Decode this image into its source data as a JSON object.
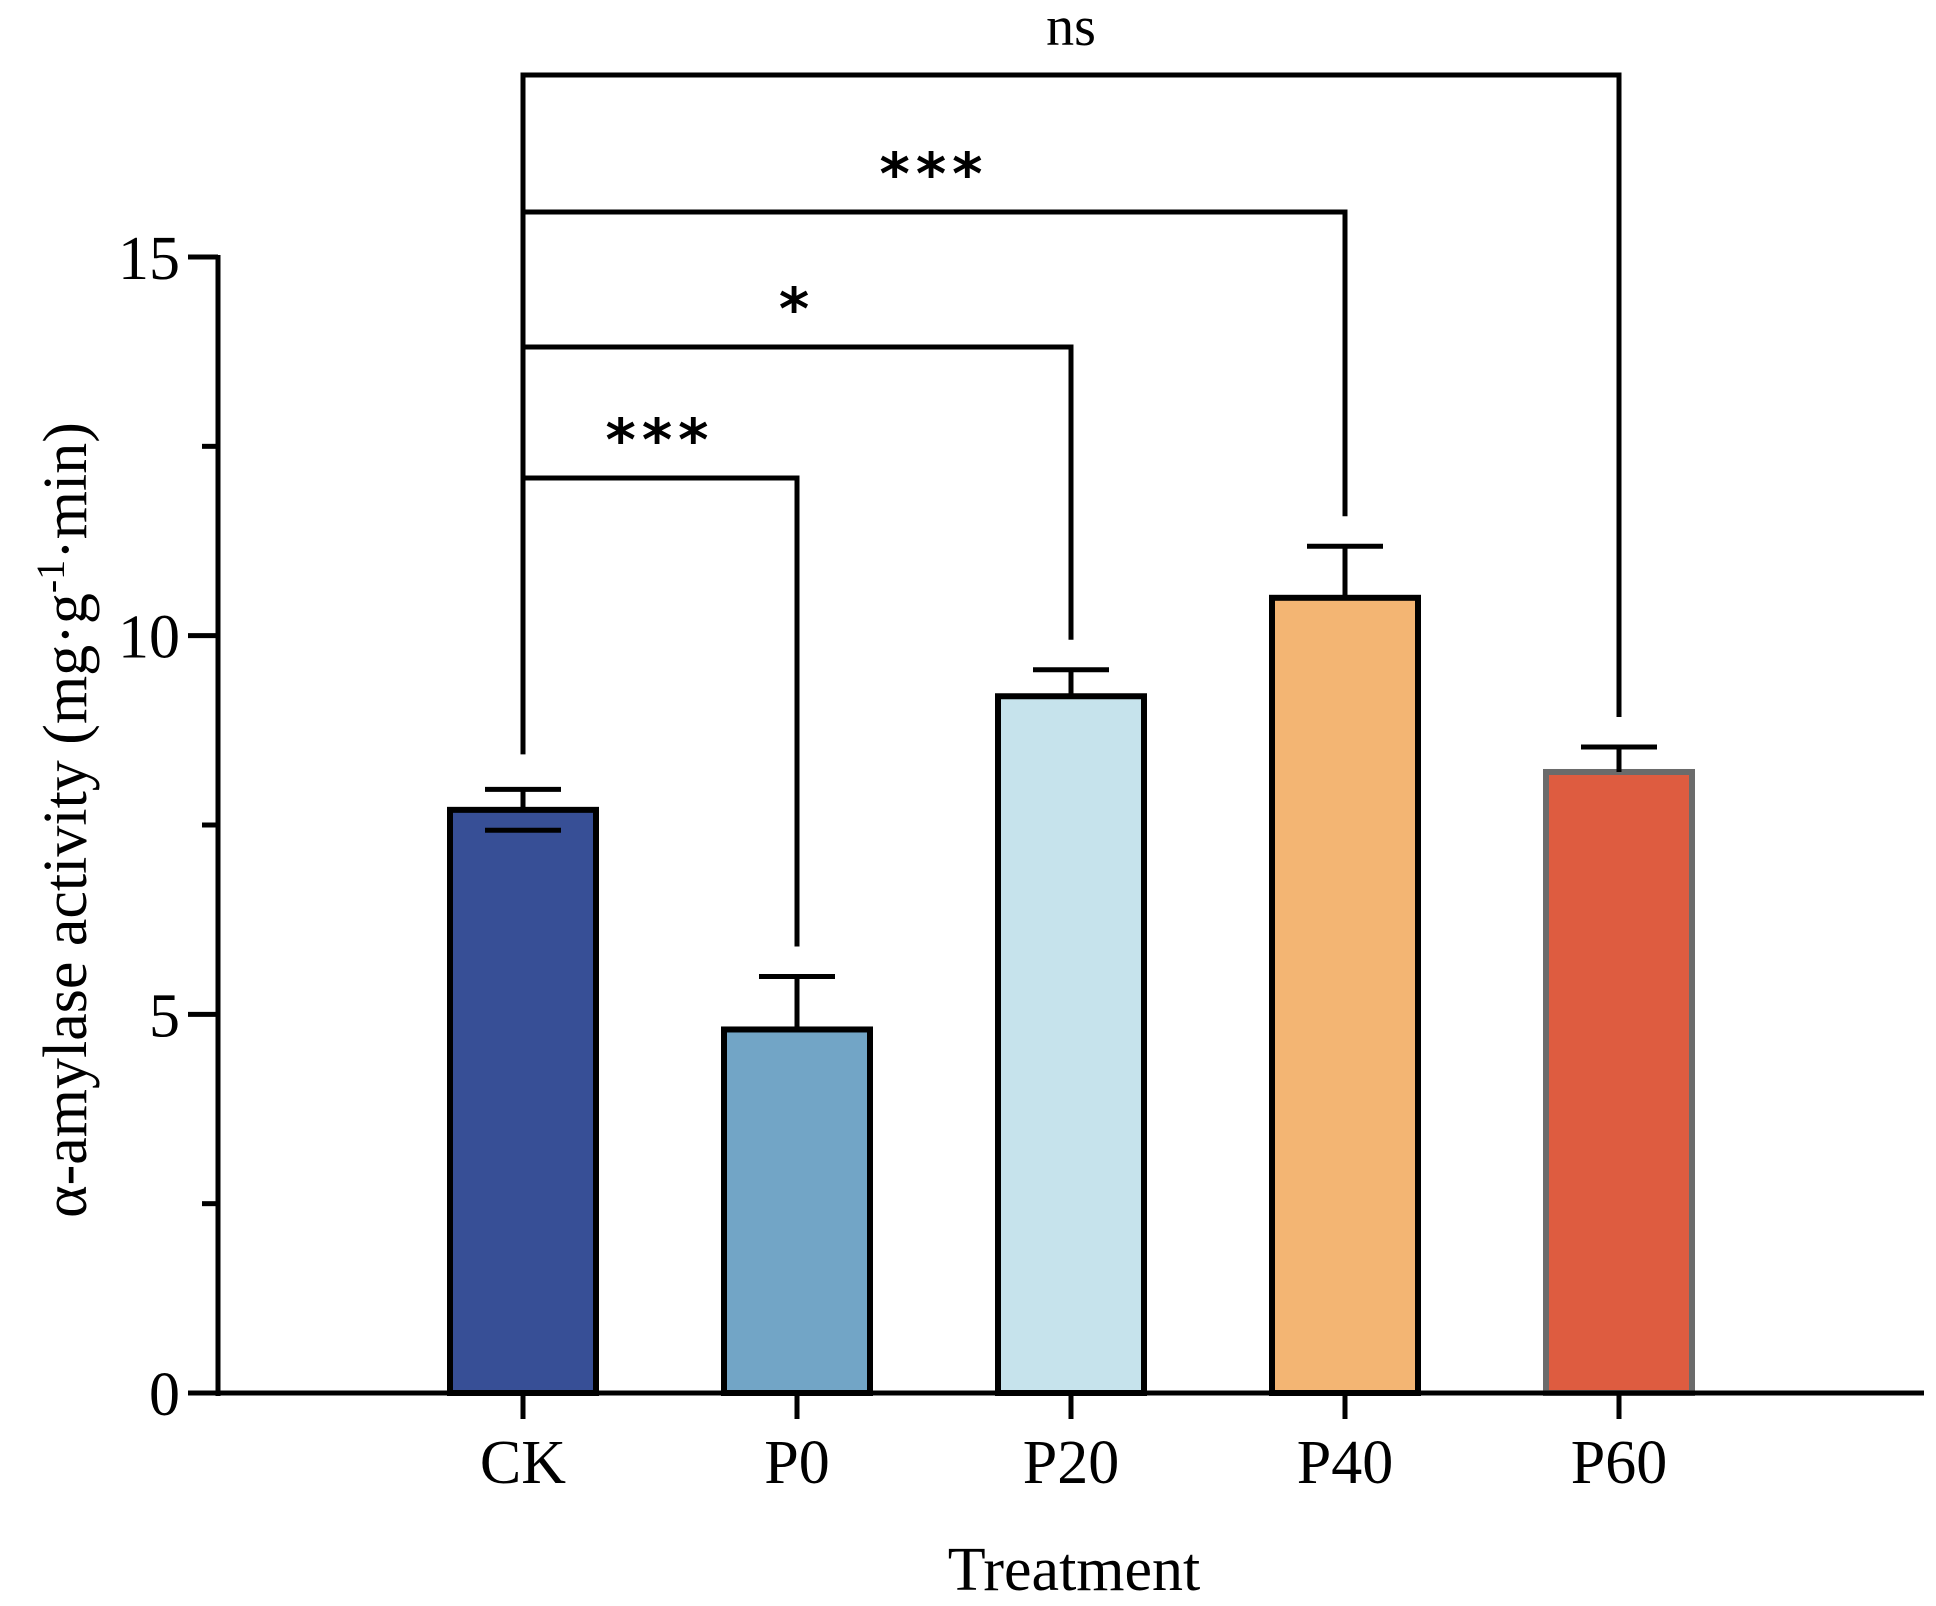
{
  "chart_data": {
    "type": "bar",
    "categories": [
      "CK",
      "P0",
      "P20",
      "P40",
      "P60"
    ],
    "values": [
      7.7,
      4.8,
      9.2,
      10.5,
      8.2
    ],
    "errors": [
      0.27,
      0.7,
      0.35,
      0.68,
      0.33
    ],
    "colors": [
      "#374f96",
      "#72a5c6",
      "#c6e3ec",
      "#f3b573",
      "#de5c40"
    ],
    "xlabel": "Treatment",
    "ylabel_prefix": "α-amylase activity (mg·g",
    "ylabel_sup": "-1",
    "ylabel_suffix": "·min)",
    "ylim": [
      0,
      15
    ],
    "yticks": [
      {
        "value": 0,
        "label": "0"
      },
      {
        "value": 5,
        "label": "5"
      },
      {
        "value": 10,
        "label": "10"
      },
      {
        "value": 15,
        "label": "15"
      }
    ],
    "minor_yticks": [
      2.5,
      7.5,
      12.5
    ],
    "comparisons": [
      {
        "from": "CK",
        "to": "P0",
        "label": "***"
      },
      {
        "from": "CK",
        "to": "P20",
        "label": "*"
      },
      {
        "from": "CK",
        "to": "P40",
        "label": "***"
      },
      {
        "from": "CK",
        "to": "P60",
        "label": "ns"
      }
    ]
  }
}
